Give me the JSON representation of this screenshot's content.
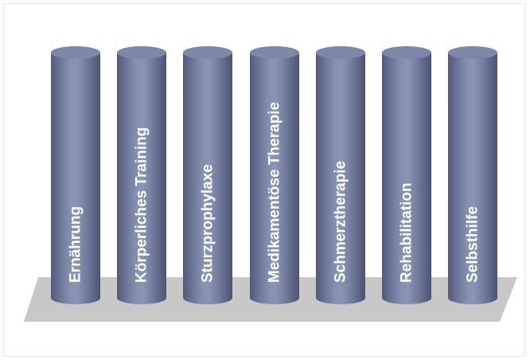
{
  "diagram": {
    "pillars": [
      {
        "label": "Ernährung"
      },
      {
        "label": "Körperliches Training"
      },
      {
        "label": "Sturzprophylaxe"
      },
      {
        "label": "Medikamentöse Therapie"
      },
      {
        "label": "Schmerztherapie"
      },
      {
        "label": "Rehabilitation"
      },
      {
        "label": "Selbsthilfe"
      }
    ],
    "colors": {
      "pillar_base": "#7d87a8",
      "pillar_shadow": "#4c5373",
      "platform": "#c8c8c8",
      "label_text": "#ffffff"
    }
  }
}
